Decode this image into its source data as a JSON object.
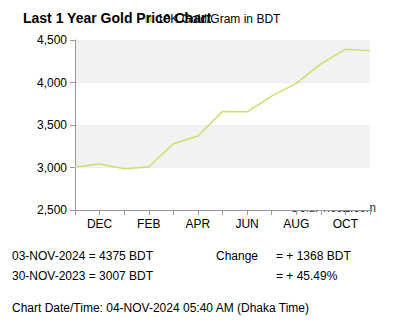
{
  "chart_data": {
    "type": "line",
    "title": "Last 1 Year Gold Price Chart",
    "categories": [
      null,
      "DEC",
      null,
      "FEB",
      null,
      "APR",
      null,
      "JUN",
      null,
      "AUG",
      null,
      "OCT",
      null
    ],
    "series": [
      {
        "name": "10K Gold/Gram in BDT",
        "color": "#c8e06e",
        "values": [
          3007,
          3040,
          2985,
          3005,
          3280,
          3370,
          3660,
          3655,
          3840,
          3990,
          4220,
          4390,
          4375
        ]
      }
    ],
    "ylim": [
      2500,
      4500
    ],
    "yticks": [
      2500,
      3000,
      3500,
      4000,
      4500
    ],
    "grid": true,
    "legend": "top",
    "watermark": "GoldPriceZ.com",
    "annotations": [
      "03-NOV-2024 = 4375 BDT",
      "30-NOV-2023 = 3007 BDT",
      "Change",
      "= + 1368 BDT",
      "= + 45.49%",
      "Chart Date/Time: 04-NOV-2024 05:40 AM (Dhaka Time)"
    ]
  }
}
